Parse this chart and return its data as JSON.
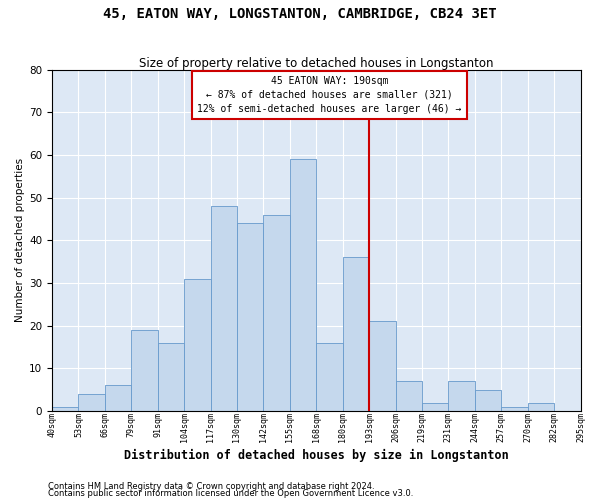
{
  "title": "45, EATON WAY, LONGSTANTON, CAMBRIDGE, CB24 3ET",
  "subtitle": "Size of property relative to detached houses in Longstanton",
  "xlabel": "Distribution of detached houses by size in Longstanton",
  "ylabel": "Number of detached properties",
  "bar_heights": [
    1,
    4,
    6,
    19,
    16,
    31,
    48,
    44,
    46,
    59,
    16,
    36,
    21,
    7,
    2,
    7,
    5,
    1,
    2,
    0
  ],
  "bin_labels": [
    "40sqm",
    "53sqm",
    "66sqm",
    "79sqm",
    "91sqm",
    "104sqm",
    "117sqm",
    "130sqm",
    "142sqm",
    "155sqm",
    "168sqm",
    "180sqm",
    "193sqm",
    "206sqm",
    "219sqm",
    "231sqm",
    "244sqm",
    "257sqm",
    "270sqm",
    "282sqm",
    "295sqm"
  ],
  "bar_color": "#c5d8ed",
  "bar_edge_color": "#6699cc",
  "reference_line_label": "45 EATON WAY: 190sqm",
  "annotation_line1": "← 87% of detached houses are smaller (321)",
  "annotation_line2": "12% of semi-detached houses are larger (46) →",
  "annotation_box_color": "#ffffff",
  "annotation_box_edge_color": "#cc0000",
  "vline_color": "#cc0000",
  "vline_x_bin": 11,
  "ylim": [
    0,
    80
  ],
  "yticks": [
    0,
    10,
    20,
    30,
    40,
    50,
    60,
    70,
    80
  ],
  "background_color": "#dde8f5",
  "grid_color": "#ffffff",
  "footnote1": "Contains HM Land Registry data © Crown copyright and database right 2024.",
  "footnote2": "Contains public sector information licensed under the Open Government Licence v3.0."
}
